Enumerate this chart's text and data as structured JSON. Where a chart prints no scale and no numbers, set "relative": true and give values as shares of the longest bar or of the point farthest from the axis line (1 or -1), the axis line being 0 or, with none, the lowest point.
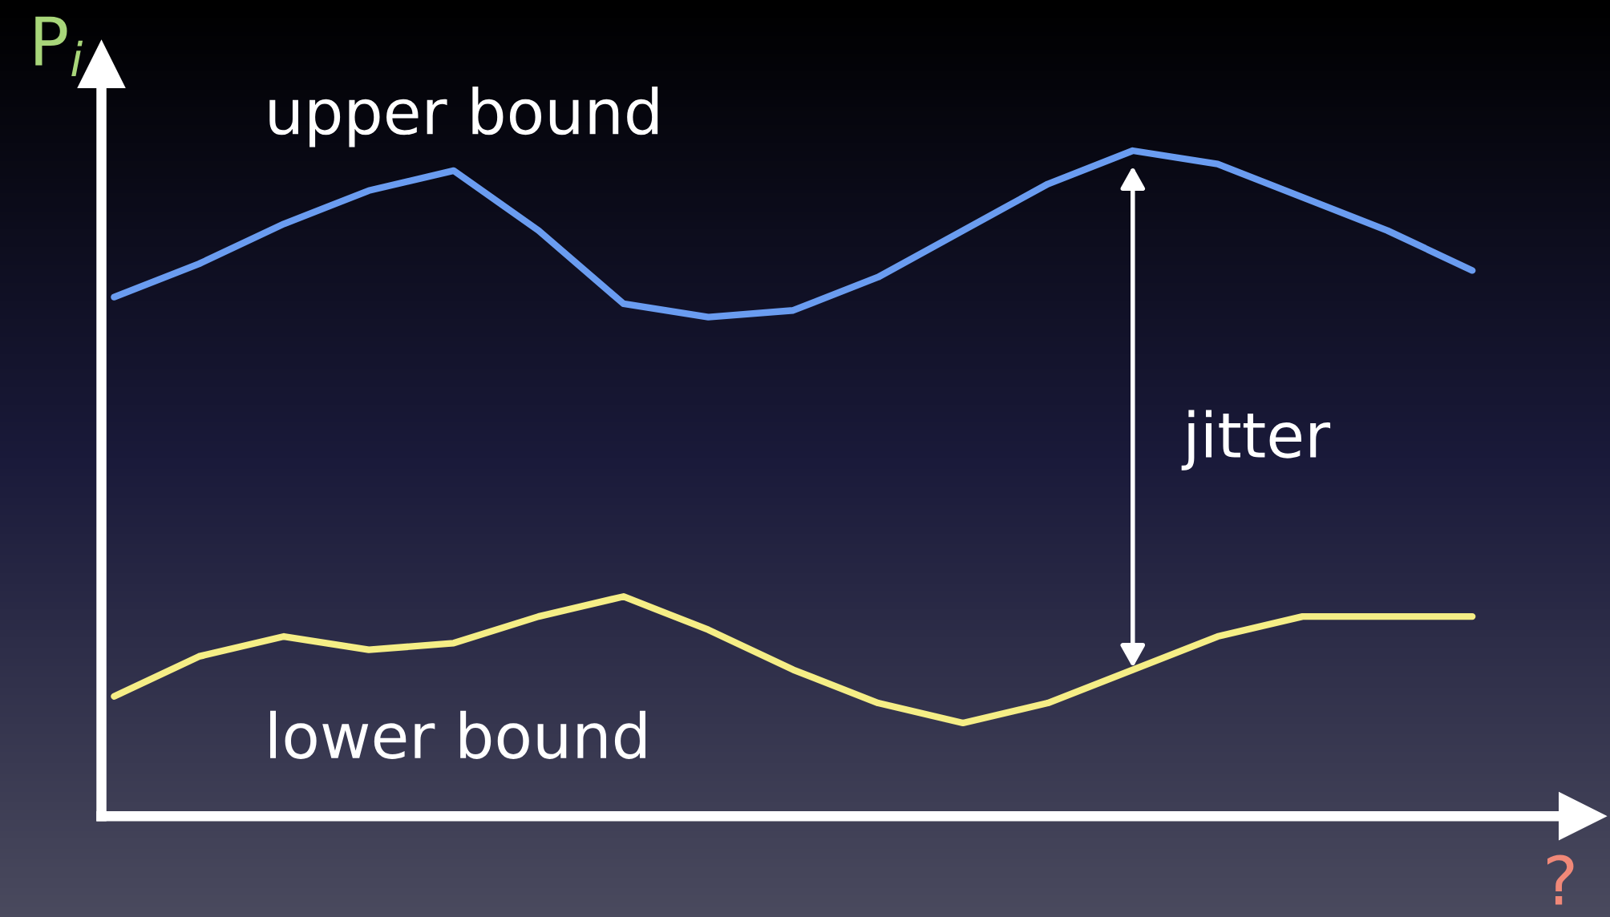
{
  "chart_data": {
    "type": "line",
    "relative": true,
    "ylabel": "P$_{i}$",
    "xlabel": "?",
    "categories": [
      null,
      null,
      null,
      null,
      null,
      null,
      null,
      null,
      null,
      null,
      null,
      null,
      null,
      null,
      null,
      null,
      null
    ],
    "series": [
      {
        "color": "#6a9cf0",
        "values": [
          0.78,
          0.83,
          0.89,
          0.94,
          0.97,
          0.88,
          0.77,
          0.75,
          0.76,
          0.81,
          0.88,
          0.95,
          1,
          0.98,
          0.93,
          0.88,
          0.82
        ]
      },
      {
        "color": "#f5ee86",
        "values": [
          0.18,
          0.24,
          0.27,
          0.25,
          0.26,
          0.3,
          0.33,
          0.28,
          0.22,
          0.17,
          0.14,
          0.17,
          0.22,
          0.27,
          0.3,
          0.3,
          0.3
        ]
      }
    ],
    "annotations": [
      "upper bound",
      "lower bound",
      "jitter"
    ],
    "legend": false,
    "grid": false,
    "line_style": "solid",
    "marker": "none"
  }
}
